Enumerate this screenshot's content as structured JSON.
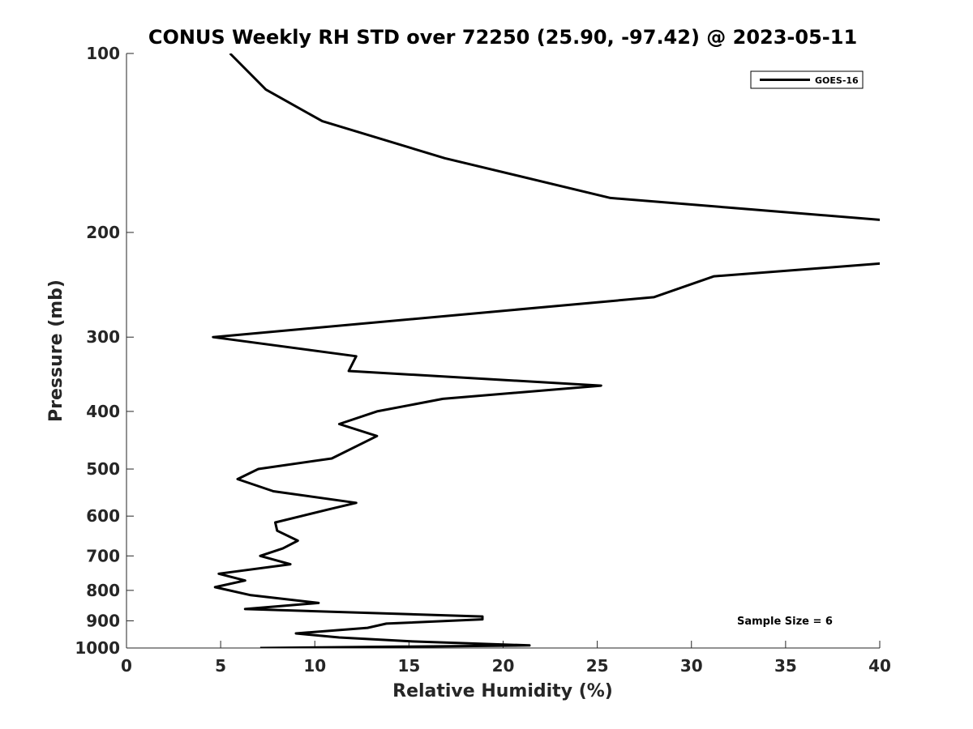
{
  "chart_data": {
    "type": "line",
    "title": "CONUS Weekly RH STD over 72250 (25.90, -97.42) @ 2023-05-11",
    "xlabel": "Relative Humidity (%)",
    "ylabel": "Pressure (mb)",
    "xlim": [
      0,
      40
    ],
    "ylim": [
      100,
      1000
    ],
    "yscale": "log",
    "y_reversed": true,
    "x_ticks": [
      0,
      5,
      10,
      15,
      20,
      25,
      30,
      35,
      40
    ],
    "x_tick_labels": [
      "0",
      "5",
      "10",
      "15",
      "20",
      "25",
      "30",
      "35",
      "40"
    ],
    "y_ticks": [
      100,
      200,
      300,
      400,
      500,
      600,
      700,
      800,
      900,
      1000
    ],
    "y_tick_labels": [
      "100",
      "200",
      "300",
      "400",
      "500",
      "600",
      "700",
      "800",
      "900",
      "1000"
    ],
    "grid": false,
    "legend_location": "top-right",
    "annotation": "Sample Size = 6",
    "series": [
      {
        "name": "GOES-16",
        "color": "#000000",
        "x": [
          5.5,
          7.4,
          10.4,
          16.9,
          25.7,
          40.5,
          40.5,
          31.2,
          28.0,
          4.6,
          12.2,
          11.8,
          25.2,
          16.8,
          13.3,
          11.3,
          13.3,
          10.9,
          7.0,
          5.9,
          7.8,
          12.2,
          10.7,
          7.9,
          8.0,
          9.1,
          8.3,
          7.1,
          8.7,
          4.9,
          6.3,
          4.7,
          6.6,
          10.2,
          6.3,
          18.9,
          18.9,
          13.8,
          12.8,
          9.0,
          11.3,
          15.2,
          21.4,
          7.1
        ],
        "y": [
          100,
          115,
          130,
          150,
          175,
          191,
          225,
          237,
          257,
          300,
          323,
          342,
          362,
          381,
          400,
          420,
          440,
          480,
          500,
          520,
          545,
          570,
          585,
          615,
          635,
          660,
          680,
          700,
          723,
          750,
          770,
          790,
          815,
          840,
          860,
          885,
          895,
          910,
          925,
          945,
          960,
          975,
          990,
          1000
        ]
      }
    ]
  }
}
